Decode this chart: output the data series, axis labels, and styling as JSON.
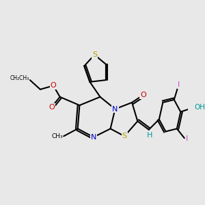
{
  "background_color": "#e8e8e8",
  "line_color": "#000000",
  "line_width": 1.5,
  "figsize": [
    3.0,
    3.0
  ],
  "dpi": 100,
  "colors": {
    "S": "#b8a000",
    "N": "#0000cc",
    "O": "#cc0000",
    "I": "#cc44cc",
    "OH": "#009999",
    "H": "#009999",
    "black": "#000000",
    "bg": "#e8e8e8"
  }
}
